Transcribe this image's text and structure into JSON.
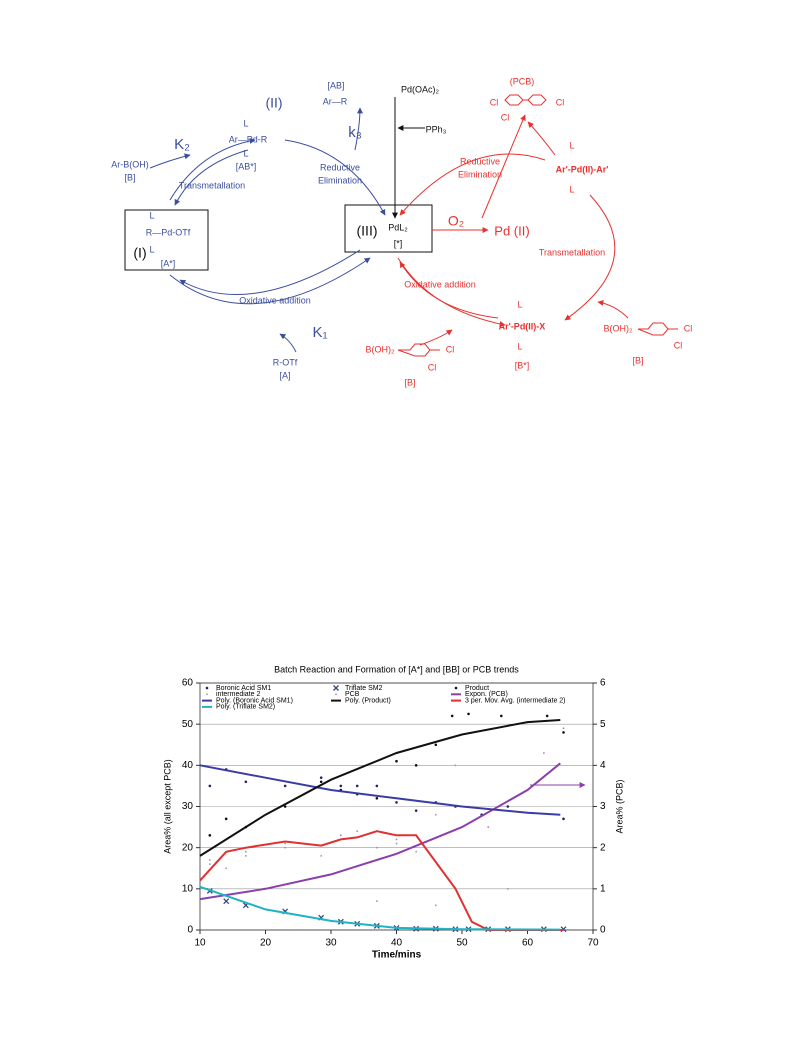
{
  "diagram": {
    "labels": [
      "(II)",
      "L",
      "Ar—Pd-R",
      "L",
      "[AB*]",
      "K₂",
      "Ar-B(OH)",
      "[B]",
      "Transmetallation",
      "(I)",
      "L",
      "R—Pd-OTf",
      "L",
      "[A*]",
      "Oxidative addition",
      "K₁",
      "R-OTf",
      "[A]",
      "[AB]",
      "Ar—R",
      "k₃",
      "Reductive",
      "Elimination",
      "Pd(OAc)₂",
      "PPh₃",
      "(III)",
      "PdL₂",
      "[*]",
      "O₂",
      "Pd (II)",
      "(PCB)",
      "Cl",
      "Cl",
      "Cl",
      "Reductive",
      "Elimination",
      "L",
      "Ar'-Pd(II)-Ar'",
      "L",
      "Transmetallation",
      "Oxidative addition",
      "L",
      "Ar'-Pd(II)-X",
      "L",
      "[B*]",
      "B(OH)₂",
      "Cl",
      "Cl",
      "[B]",
      "B(OH)₂",
      "Cl",
      "Cl",
      "[B]"
    ]
  },
  "chart_data": {
    "type": "scatter",
    "title": "Batch Reaction and Formation of [A*] and [BB] or PCB trends",
    "x_label": "Time/mins",
    "y_label": "Area% (all except PCB)",
    "y2_label": "Area% (PCB)",
    "xlim": [
      10,
      70
    ],
    "xticks": [
      10,
      20,
      30,
      40,
      50,
      60,
      70
    ],
    "ylim": [
      0,
      60
    ],
    "yticks": [
      0,
      10,
      20,
      30,
      40,
      50,
      60
    ],
    "y2lim": [
      0,
      6
    ],
    "y2ticks": [
      0,
      1,
      2,
      3,
      4,
      5,
      6
    ],
    "grid": true,
    "series": [
      {
        "name": "Boronic Acid SM1",
        "type": "scatter",
        "marker": "dot",
        "color": "#1d2466",
        "x": [
          11.5,
          14,
          17,
          23,
          28.5,
          31.5,
          34,
          37,
          40,
          43,
          46,
          49,
          53,
          57,
          65.5
        ],
        "values": [
          35,
          39,
          36,
          35,
          37,
          35,
          35,
          35,
          31,
          29,
          31,
          30,
          28,
          30,
          27
        ]
      },
      {
        "name": "Triflate SM2",
        "type": "scatter",
        "marker": "x",
        "color": "#2f4a7a",
        "x": [
          11.5,
          14,
          17,
          23,
          28.5,
          31.5,
          34,
          37,
          40,
          43,
          46,
          49,
          51,
          54,
          57,
          62.5,
          65.5
        ],
        "values": [
          9.5,
          7,
          6,
          4.5,
          3,
          2,
          1.5,
          1,
          0.5,
          0.3,
          0.3,
          0.2,
          0.2,
          0.2,
          0.2,
          0.2,
          0.2
        ]
      },
      {
        "name": "Product",
        "type": "scatter",
        "marker": "dot",
        "color": "#111111",
        "x": [
          11.5,
          14,
          17,
          23,
          28.5,
          31.5,
          34,
          37,
          40,
          43,
          46,
          48.5,
          51,
          56,
          63,
          65.5
        ],
        "values": [
          23,
          27,
          25,
          30,
          36,
          34,
          33,
          32,
          41,
          40,
          45,
          52,
          52.5,
          52,
          52,
          48
        ]
      },
      {
        "name": "intermediate 2",
        "type": "scatter",
        "marker": "small",
        "color": "#9a9a9a",
        "x": [
          11.5,
          14,
          17,
          23,
          28.5,
          31.5,
          34,
          37,
          40,
          43,
          46,
          49,
          57
        ],
        "values": [
          17,
          15,
          19,
          21,
          18,
          23,
          24,
          7,
          21,
          19,
          6,
          40,
          10
        ]
      },
      {
        "name": "PCB",
        "type": "scatter",
        "marker": "small",
        "color": "#b27bbf",
        "axis": "y2",
        "x": [
          11.5,
          17,
          23,
          31.5,
          37,
          40,
          46,
          51,
          54,
          62.5,
          65.5
        ],
        "values": [
          1.6,
          1.8,
          2,
          2.3,
          2,
          2.2,
          2.8,
          3,
          2.5,
          4.3,
          4.9
        ]
      },
      {
        "name": "Expon. (PCB)",
        "type": "line",
        "color": "#8b3fad",
        "axis": "y2",
        "x": [
          10,
          20,
          30,
          40,
          50,
          60,
          65
        ],
        "values": [
          0.75,
          1,
          1.35,
          1.85,
          2.5,
          3.4,
          4.05
        ]
      },
      {
        "name": "Poly. (Boronic Acid SM1)",
        "type": "line",
        "color": "#3b3ba8",
        "x": [
          10,
          20,
          30,
          40,
          50,
          60,
          65
        ],
        "values": [
          40,
          37,
          34,
          32,
          30,
          28.5,
          28
        ]
      },
      {
        "name": "Poly. (Product)",
        "type": "line",
        "color": "#111111",
        "x": [
          10,
          20,
          30,
          40,
          50,
          60,
          65
        ],
        "values": [
          18,
          28,
          36.5,
          43,
          47.5,
          50.5,
          51
        ]
      },
      {
        "name": "3 per. Mov. Avg. (intermediate 2)",
        "type": "line",
        "color": "#e03030",
        "x": [
          10,
          14,
          17,
          23,
          28.5,
          31.5,
          34,
          37,
          40,
          43,
          49,
          51.5,
          54,
          57,
          65.5
        ],
        "values": [
          12,
          19,
          20,
          21.5,
          20.5,
          22,
          22.5,
          24,
          23,
          23,
          10,
          2,
          0,
          0,
          0
        ]
      },
      {
        "name": "Poly. (Triflate SM2)",
        "type": "line",
        "color": "#1fb3c3",
        "x": [
          10,
          20,
          30,
          40,
          50,
          65
        ],
        "values": [
          10.5,
          5,
          2.2,
          0.5,
          0.2,
          0.1
        ]
      }
    ]
  }
}
